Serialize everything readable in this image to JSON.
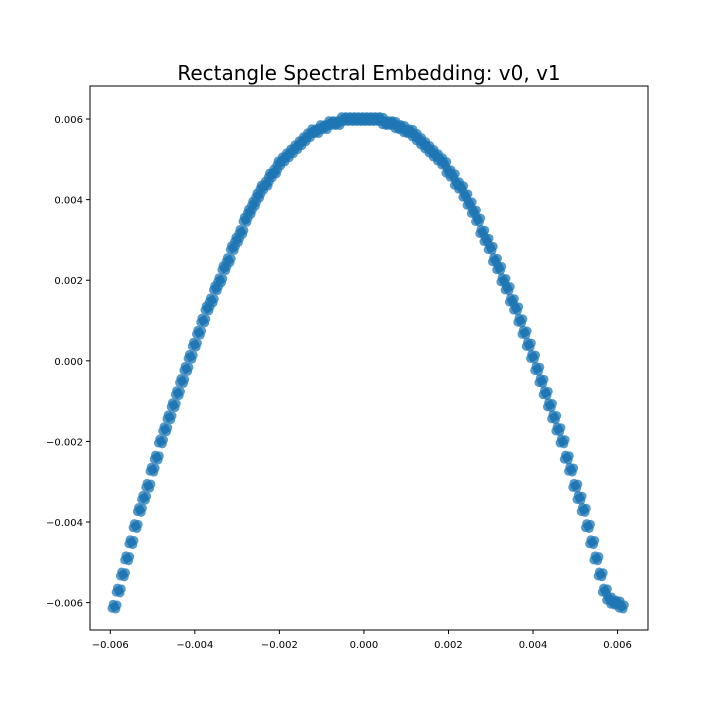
{
  "chart_data": {
    "type": "scatter",
    "title": "Rectangle Spectral Embedding: v0, v1",
    "xlabel": "",
    "ylabel": "",
    "xlim": [
      -0.00648,
      0.00672
    ],
    "ylim": [
      -0.00668,
      0.00682
    ],
    "x_ticks": [
      -0.006,
      -0.004,
      -0.002,
      0.0,
      0.002,
      0.004,
      0.006
    ],
    "x_tick_labels": [
      "−0.006",
      "−0.004",
      "−0.002",
      "0.000",
      "0.002",
      "0.004",
      "0.006"
    ],
    "y_ticks": [
      -0.006,
      -0.004,
      -0.002,
      0.0,
      0.002,
      0.004,
      0.006
    ],
    "y_tick_labels": [
      "−0.006",
      "−0.004",
      "−0.002",
      "0.000",
      "0.002",
      "0.004",
      "0.006"
    ],
    "grid": false,
    "legend": "none",
    "marker_color": "#1f77b4",
    "series": [
      {
        "x": [
          -0.0059,
          -0.0058,
          -0.0057,
          -0.0056,
          -0.0055,
          -0.0054,
          -0.0053,
          -0.0052,
          -0.0051,
          -0.005,
          -0.0049,
          -0.0048,
          -0.0047,
          -0.0046,
          -0.0045,
          -0.0044,
          -0.0043,
          -0.0042,
          -0.0041,
          -0.004,
          -0.0039,
          -0.0038,
          -0.0037,
          -0.0036,
          -0.0035,
          -0.0034,
          -0.0033,
          -0.0032,
          -0.0031,
          -0.003,
          -0.0029,
          -0.0028,
          -0.0027,
          -0.0026,
          -0.0025,
          -0.0024,
          -0.0023,
          -0.0022,
          -0.0021,
          -0.002,
          -0.0019,
          -0.0018,
          -0.0017,
          -0.0016,
          -0.0015,
          -0.0014,
          -0.0013,
          -0.0012,
          -0.0011,
          -0.001,
          -0.0009,
          -0.0008,
          -0.0007,
          -0.0006,
          -0.0005,
          -0.0004,
          -0.0003,
          -0.0002,
          -0.0001,
          0.0,
          0.0001,
          0.0002,
          0.0003,
          0.0004,
          0.0005,
          0.0006,
          0.0007,
          0.0008,
          0.0009,
          0.001,
          0.0011,
          0.0012,
          0.0013,
          0.0014,
          0.0015,
          0.0016,
          0.0017,
          0.0018,
          0.0019,
          0.002,
          0.0021,
          0.0022,
          0.0023,
          0.0024,
          0.0025,
          0.0026,
          0.0027,
          0.0028,
          0.0029,
          0.003,
          0.0031,
          0.0032,
          0.0033,
          0.0034,
          0.0035,
          0.0036,
          0.0037,
          0.0038,
          0.0039,
          0.004,
          0.0041,
          0.0042,
          0.0043,
          0.0044,
          0.0045,
          0.0046,
          0.0047,
          0.0048,
          0.0049,
          0.005,
          0.0051,
          0.0052,
          0.0053,
          0.0054,
          0.0055,
          0.0056,
          0.0057,
          0.0058,
          0.0059,
          0.006,
          0.0061
        ],
        "y": [
          -0.0061,
          -0.0057,
          -0.0053,
          -0.0049,
          -0.0045,
          -0.0041,
          -0.0037,
          -0.0034,
          -0.0031,
          -0.0027,
          -0.0024,
          -0.002,
          -0.0017,
          -0.0014,
          -0.0011,
          -0.0008,
          -0.0005,
          -0.0002,
          0.0001,
          0.0004,
          0.0007,
          0.001,
          0.0013,
          0.0015,
          0.0018,
          0.002,
          0.0023,
          0.0025,
          0.0028,
          0.003,
          0.0032,
          0.0035,
          0.0037,
          0.0039,
          0.0041,
          0.0043,
          0.0044,
          0.0046,
          0.0047,
          0.0049,
          0.005,
          0.0051,
          0.0052,
          0.0053,
          0.0054,
          0.0055,
          0.0056,
          0.0057,
          0.0057,
          0.0058,
          0.0058,
          0.0059,
          0.0059,
          0.0059,
          0.006,
          0.006,
          0.006,
          0.006,
          0.006,
          0.006,
          0.006,
          0.006,
          0.006,
          0.006,
          0.0059,
          0.0059,
          0.0059,
          0.0058,
          0.0058,
          0.0057,
          0.0057,
          0.0056,
          0.0055,
          0.0054,
          0.0053,
          0.0052,
          0.0051,
          0.005,
          0.0049,
          0.0047,
          0.0046,
          0.0044,
          0.0043,
          0.0041,
          0.0039,
          0.0037,
          0.0035,
          0.0032,
          0.003,
          0.0028,
          0.0025,
          0.0023,
          0.002,
          0.0018,
          0.0015,
          0.0013,
          0.001,
          0.0007,
          0.0004,
          0.0001,
          -0.0002,
          -0.0005,
          -0.0008,
          -0.0011,
          -0.0014,
          -0.0017,
          -0.002,
          -0.0024,
          -0.0027,
          -0.0031,
          -0.0034,
          -0.0037,
          -0.0041,
          -0.0045,
          -0.0049,
          -0.0053,
          -0.0057,
          -0.0059,
          -0.006,
          -0.006,
          -0.0061
        ]
      }
    ]
  }
}
